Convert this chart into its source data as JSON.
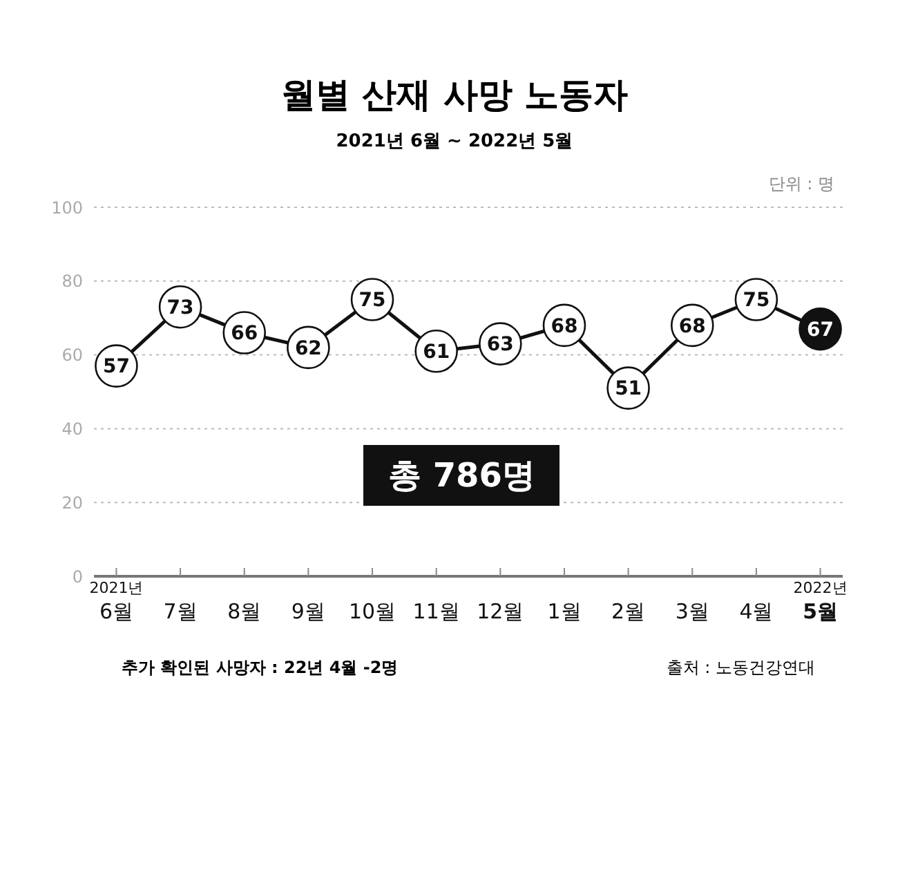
{
  "chart_data": {
    "type": "line",
    "title": "월별 산재 사망 노동자",
    "subtitle": "2021년 6월 ~ 2022년 5월",
    "categories": [
      "2021년\n6월",
      "7월",
      "8월",
      "9월",
      "10월",
      "11월",
      "12월",
      "1월",
      "2월",
      "3월",
      "4월",
      "2022년\n5월"
    ],
    "series": [
      {
        "color": "#111111",
        "values": [
          57,
          73,
          66,
          62,
          75,
          61,
          63,
          68,
          51,
          68,
          75,
          67
        ],
        "colors": [
          "#ffffff",
          "#ffffff",
          "#ffffff",
          "#ffffff",
          "#ffffff",
          "#ffffff",
          "#ffffff",
          "#ffffff",
          "#ffffff",
          "#ffffff",
          "#ffffff",
          "#111111"
        ]
      }
    ],
    "ylim": [
      0,
      100
    ],
    "yticks": [
      0,
      20,
      40,
      60,
      80,
      100
    ],
    "grid": "y",
    "marker": "circle",
    "data_labels": true,
    "annotations": [
      {
        "text": "단위 : 명"
      },
      {
        "text": "총 786명"
      },
      {
        "text": "추가 확인된 사망자 : 22년 4월 -2명"
      },
      {
        "text": "출처 : 노동건강연대"
      }
    ]
  }
}
